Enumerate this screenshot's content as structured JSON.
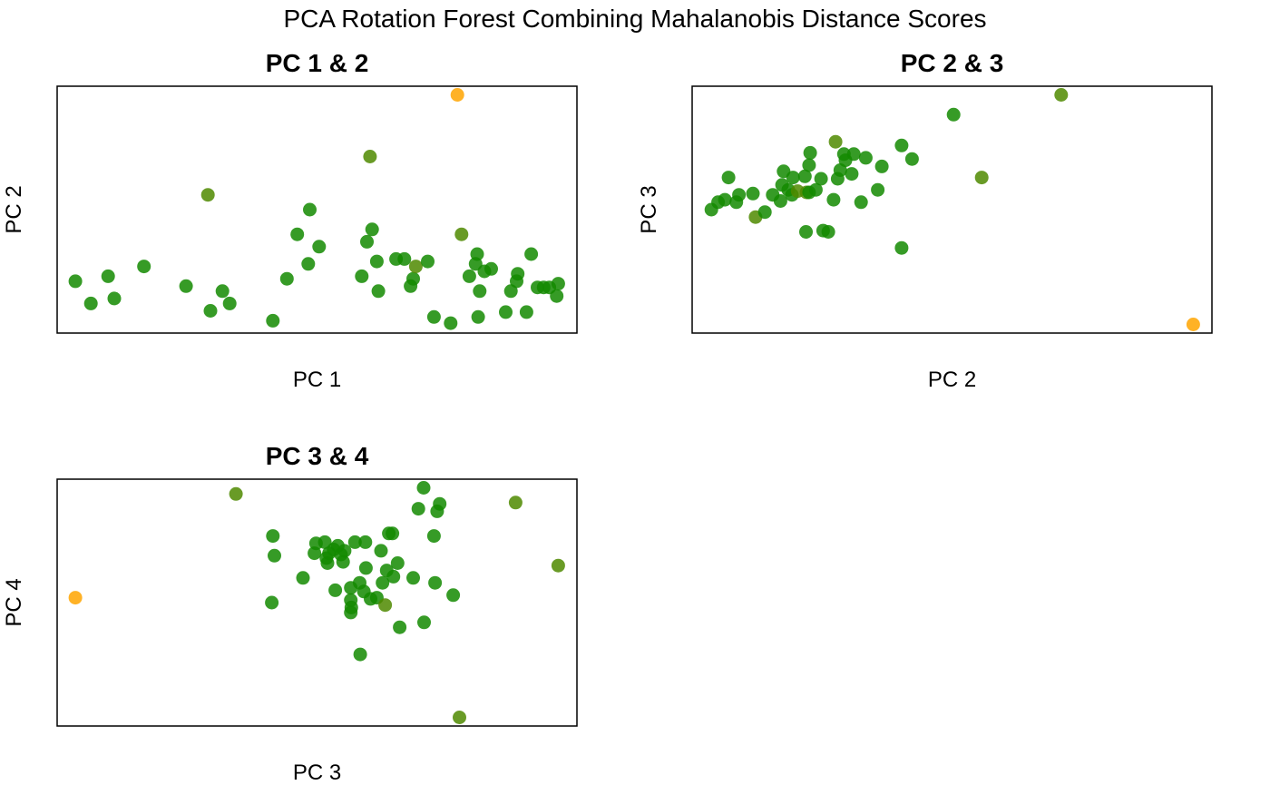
{
  "title": "PCA Rotation Forest Combining Mahalanobis Distance Scores",
  "colors": {
    "normal": "#138A00",
    "mid": "#4F8A00",
    "outlier": "#FFA500"
  },
  "chart_data": [
    {
      "type": "scatter",
      "title": "PC 1 & 2",
      "xlabel": "PC 1",
      "ylabel": "PC 2",
      "xlim": [
        0,
        100
      ],
      "ylim": [
        0,
        100
      ],
      "axes_ticks": false,
      "points": [
        {
          "x": 3.5,
          "y": 21,
          "c": "normal"
        },
        {
          "x": 6.5,
          "y": 12,
          "c": "normal"
        },
        {
          "x": 9.8,
          "y": 23,
          "c": "normal"
        },
        {
          "x": 11,
          "y": 14,
          "c": "normal"
        },
        {
          "x": 16.7,
          "y": 27,
          "c": "normal"
        },
        {
          "x": 24.8,
          "y": 19,
          "c": "normal"
        },
        {
          "x": 29,
          "y": 56,
          "c": "mid"
        },
        {
          "x": 29.5,
          "y": 9,
          "c": "normal"
        },
        {
          "x": 31.8,
          "y": 17,
          "c": "normal"
        },
        {
          "x": 33.2,
          "y": 12,
          "c": "normal"
        },
        {
          "x": 41.5,
          "y": 5,
          "c": "normal"
        },
        {
          "x": 44.2,
          "y": 22,
          "c": "normal"
        },
        {
          "x": 46.2,
          "y": 40,
          "c": "normal"
        },
        {
          "x": 48.3,
          "y": 28,
          "c": "normal"
        },
        {
          "x": 48.6,
          "y": 50,
          "c": "normal"
        },
        {
          "x": 50.4,
          "y": 35,
          "c": "normal"
        },
        {
          "x": 58.6,
          "y": 23,
          "c": "normal"
        },
        {
          "x": 59.6,
          "y": 37,
          "c": "normal"
        },
        {
          "x": 60.2,
          "y": 71.5,
          "c": "mid"
        },
        {
          "x": 60.6,
          "y": 42,
          "c": "normal"
        },
        {
          "x": 61.5,
          "y": 29,
          "c": "normal"
        },
        {
          "x": 61.8,
          "y": 17,
          "c": "normal"
        },
        {
          "x": 65.2,
          "y": 30,
          "c": "normal"
        },
        {
          "x": 66.8,
          "y": 30,
          "c": "normal"
        },
        {
          "x": 68,
          "y": 19,
          "c": "normal"
        },
        {
          "x": 68.5,
          "y": 22,
          "c": "normal"
        },
        {
          "x": 69,
          "y": 27,
          "c": "mid"
        },
        {
          "x": 71.3,
          "y": 29,
          "c": "normal"
        },
        {
          "x": 72.5,
          "y": 6.5,
          "c": "normal"
        },
        {
          "x": 75.7,
          "y": 4,
          "c": "normal"
        },
        {
          "x": 77,
          "y": 96.5,
          "c": "outlier"
        },
        {
          "x": 77.8,
          "y": 40,
          "c": "mid"
        },
        {
          "x": 79.3,
          "y": 23,
          "c": "normal"
        },
        {
          "x": 80.5,
          "y": 28,
          "c": "normal"
        },
        {
          "x": 80.8,
          "y": 32,
          "c": "normal"
        },
        {
          "x": 81,
          "y": 6.5,
          "c": "normal"
        },
        {
          "x": 81.3,
          "y": 17,
          "c": "normal"
        },
        {
          "x": 82.2,
          "y": 25,
          "c": "normal"
        },
        {
          "x": 83.5,
          "y": 26,
          "c": "normal"
        },
        {
          "x": 86.3,
          "y": 8.5,
          "c": "normal"
        },
        {
          "x": 87.3,
          "y": 17,
          "c": "normal"
        },
        {
          "x": 88.4,
          "y": 21,
          "c": "normal"
        },
        {
          "x": 88.6,
          "y": 24,
          "c": "normal"
        },
        {
          "x": 90.3,
          "y": 8.5,
          "c": "normal"
        },
        {
          "x": 91.2,
          "y": 32,
          "c": "normal"
        },
        {
          "x": 92.4,
          "y": 18.5,
          "c": "normal"
        },
        {
          "x": 93.6,
          "y": 18.5,
          "c": "normal"
        },
        {
          "x": 94.7,
          "y": 18.5,
          "c": "normal"
        },
        {
          "x": 96.1,
          "y": 15,
          "c": "normal"
        },
        {
          "x": 96.4,
          "y": 20,
          "c": "normal"
        }
      ]
    },
    {
      "type": "scatter",
      "title": "PC 2 & 3",
      "xlabel": "PC 2",
      "ylabel": "PC 3",
      "xlim": [
        0,
        100
      ],
      "ylim": [
        0,
        100
      ],
      "axes_ticks": false,
      "points": [
        {
          "x": 3.7,
          "y": 50,
          "c": "normal"
        },
        {
          "x": 5,
          "y": 53,
          "c": "normal"
        },
        {
          "x": 6.3,
          "y": 54,
          "c": "normal"
        },
        {
          "x": 7,
          "y": 63,
          "c": "normal"
        },
        {
          "x": 8.5,
          "y": 53,
          "c": "normal"
        },
        {
          "x": 9,
          "y": 56,
          "c": "normal"
        },
        {
          "x": 11.7,
          "y": 56.5,
          "c": "normal"
        },
        {
          "x": 12.2,
          "y": 47,
          "c": "mid"
        },
        {
          "x": 14,
          "y": 49,
          "c": "normal"
        },
        {
          "x": 15.5,
          "y": 56,
          "c": "normal"
        },
        {
          "x": 17,
          "y": 53.5,
          "c": "normal"
        },
        {
          "x": 17.3,
          "y": 60,
          "c": "normal"
        },
        {
          "x": 17.6,
          "y": 65.5,
          "c": "normal"
        },
        {
          "x": 18.5,
          "y": 58,
          "c": "normal"
        },
        {
          "x": 19.2,
          "y": 56,
          "c": "normal"
        },
        {
          "x": 19.4,
          "y": 63,
          "c": "normal"
        },
        {
          "x": 20.3,
          "y": 57.5,
          "c": "mid"
        },
        {
          "x": 21.7,
          "y": 63.5,
          "c": "normal"
        },
        {
          "x": 21.9,
          "y": 41,
          "c": "normal"
        },
        {
          "x": 22,
          "y": 57,
          "c": "mid"
        },
        {
          "x": 22.5,
          "y": 57,
          "c": "normal"
        },
        {
          "x": 22.5,
          "y": 68,
          "c": "normal"
        },
        {
          "x": 22.7,
          "y": 73,
          "c": "normal"
        },
        {
          "x": 23.8,
          "y": 58,
          "c": "normal"
        },
        {
          "x": 24.8,
          "y": 62.5,
          "c": "normal"
        },
        {
          "x": 25.2,
          "y": 41.5,
          "c": "normal"
        },
        {
          "x": 26.2,
          "y": 41,
          "c": "normal"
        },
        {
          "x": 27.2,
          "y": 54,
          "c": "normal"
        },
        {
          "x": 27.6,
          "y": 77.5,
          "c": "mid"
        },
        {
          "x": 28,
          "y": 62.5,
          "c": "normal"
        },
        {
          "x": 28.5,
          "y": 66,
          "c": "normal"
        },
        {
          "x": 29.2,
          "y": 72.5,
          "c": "normal"
        },
        {
          "x": 29.5,
          "y": 70,
          "c": "normal"
        },
        {
          "x": 30.7,
          "y": 64.5,
          "c": "normal"
        },
        {
          "x": 31.1,
          "y": 72.5,
          "c": "normal"
        },
        {
          "x": 32.5,
          "y": 53,
          "c": "normal"
        },
        {
          "x": 33.4,
          "y": 71,
          "c": "normal"
        },
        {
          "x": 35.7,
          "y": 58,
          "c": "normal"
        },
        {
          "x": 36.5,
          "y": 67.5,
          "c": "normal"
        },
        {
          "x": 40.3,
          "y": 76,
          "c": "normal"
        },
        {
          "x": 40.3,
          "y": 34.5,
          "c": "normal"
        },
        {
          "x": 42.3,
          "y": 70.5,
          "c": "normal"
        },
        {
          "x": 50.3,
          "y": 88.5,
          "c": "normal"
        },
        {
          "x": 55.7,
          "y": 63,
          "c": "mid"
        },
        {
          "x": 71,
          "y": 96.5,
          "c": "mid"
        },
        {
          "x": 96.4,
          "y": 3.5,
          "c": "outlier"
        }
      ]
    },
    {
      "type": "scatter",
      "title": "PC 3 & 4",
      "xlabel": "PC 3",
      "ylabel": "PC 4",
      "xlim": [
        0,
        100
      ],
      "ylim": [
        0,
        100
      ],
      "axes_ticks": false,
      "points": [
        {
          "x": 3.5,
          "y": 52,
          "c": "outlier"
        },
        {
          "x": 34.4,
          "y": 94,
          "c": "mid"
        },
        {
          "x": 41.3,
          "y": 50,
          "c": "normal"
        },
        {
          "x": 41.5,
          "y": 77,
          "c": "normal"
        },
        {
          "x": 41.8,
          "y": 69,
          "c": "normal"
        },
        {
          "x": 47.3,
          "y": 60,
          "c": "normal"
        },
        {
          "x": 49.5,
          "y": 70,
          "c": "normal"
        },
        {
          "x": 49.8,
          "y": 74,
          "c": "normal"
        },
        {
          "x": 51.5,
          "y": 74.5,
          "c": "normal"
        },
        {
          "x": 51.8,
          "y": 68,
          "c": "normal"
        },
        {
          "x": 52,
          "y": 66,
          "c": "normal"
        },
        {
          "x": 52.3,
          "y": 70,
          "c": "normal"
        },
        {
          "x": 53.2,
          "y": 71.5,
          "c": "normal"
        },
        {
          "x": 53.5,
          "y": 55,
          "c": "normal"
        },
        {
          "x": 54,
          "y": 73,
          "c": "normal"
        },
        {
          "x": 54.6,
          "y": 69.5,
          "c": "normal"
        },
        {
          "x": 55,
          "y": 66.5,
          "c": "normal"
        },
        {
          "x": 55.3,
          "y": 71,
          "c": "normal"
        },
        {
          "x": 56.5,
          "y": 51,
          "c": "normal"
        },
        {
          "x": 56.5,
          "y": 56,
          "c": "normal"
        },
        {
          "x": 56.5,
          "y": 46,
          "c": "normal"
        },
        {
          "x": 56.6,
          "y": 48,
          "c": "normal"
        },
        {
          "x": 57.3,
          "y": 74.5,
          "c": "normal"
        },
        {
          "x": 58.2,
          "y": 58,
          "c": "normal"
        },
        {
          "x": 58.3,
          "y": 29,
          "c": "normal"
        },
        {
          "x": 59,
          "y": 54.5,
          "c": "normal"
        },
        {
          "x": 59.3,
          "y": 74.5,
          "c": "normal"
        },
        {
          "x": 59.4,
          "y": 64,
          "c": "normal"
        },
        {
          "x": 60.3,
          "y": 51.5,
          "c": "normal"
        },
        {
          "x": 61.5,
          "y": 52,
          "c": "normal"
        },
        {
          "x": 62.3,
          "y": 71,
          "c": "normal"
        },
        {
          "x": 62.6,
          "y": 58,
          "c": "normal"
        },
        {
          "x": 63.1,
          "y": 49,
          "c": "mid"
        },
        {
          "x": 63.4,
          "y": 63,
          "c": "normal"
        },
        {
          "x": 63.8,
          "y": 78,
          "c": "normal"
        },
        {
          "x": 64.5,
          "y": 78,
          "c": "normal"
        },
        {
          "x": 64.7,
          "y": 60.5,
          "c": "normal"
        },
        {
          "x": 65.5,
          "y": 66,
          "c": "normal"
        },
        {
          "x": 65.9,
          "y": 40,
          "c": "normal"
        },
        {
          "x": 69.5,
          "y": 88,
          "c": "normal"
        },
        {
          "x": 68.5,
          "y": 60,
          "c": "normal"
        },
        {
          "x": 70.5,
          "y": 96.5,
          "c": "normal"
        },
        {
          "x": 70.6,
          "y": 42,
          "c": "normal"
        },
        {
          "x": 72.5,
          "y": 77,
          "c": "normal"
        },
        {
          "x": 72.7,
          "y": 58,
          "c": "normal"
        },
        {
          "x": 73.1,
          "y": 87,
          "c": "normal"
        },
        {
          "x": 73.6,
          "y": 90,
          "c": "normal"
        },
        {
          "x": 76.2,
          "y": 53,
          "c": "normal"
        },
        {
          "x": 77.4,
          "y": 3.5,
          "c": "mid"
        },
        {
          "x": 88.2,
          "y": 90.5,
          "c": "mid"
        },
        {
          "x": 96.4,
          "y": 65,
          "c": "mid"
        }
      ]
    }
  ]
}
